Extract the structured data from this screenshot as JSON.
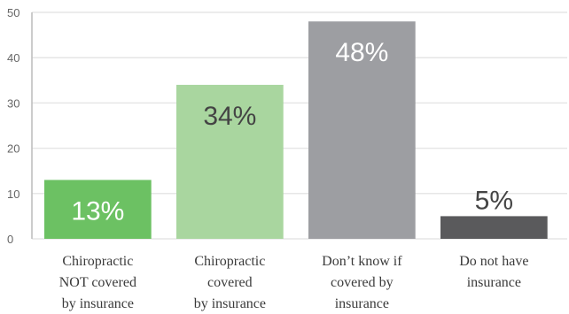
{
  "chart_data": {
    "type": "bar",
    "title": "",
    "xlabel": "",
    "ylabel": "",
    "ylim": [
      0,
      50
    ],
    "yticks": [
      0,
      10,
      20,
      30,
      40,
      50
    ],
    "grid": true,
    "legend": "none",
    "categories": [
      "Chiropractic NOT covered by insurance",
      "Chiropractic covered by insurance",
      "Don’t know if covered by insurance",
      "Do not have insurance"
    ],
    "category_lines": [
      [
        "Chiropractic",
        "NOT covered",
        "by insurance"
      ],
      [
        "Chiropractic",
        "covered",
        "by insurance"
      ],
      [
        "Don’t know if",
        "covered by",
        "insurance"
      ],
      [
        "Do not have",
        "insurance"
      ]
    ],
    "values": [
      13,
      34,
      48,
      5
    ],
    "data_labels": [
      "13%",
      "34%",
      "48%",
      "5%"
    ],
    "bar_colors": [
      "#6cc163",
      "#a9d69f",
      "#9d9ea2",
      "#5a5a5c"
    ],
    "label_colors": [
      "#ffffff",
      "#444444",
      "#ffffff",
      "#444444"
    ]
  }
}
